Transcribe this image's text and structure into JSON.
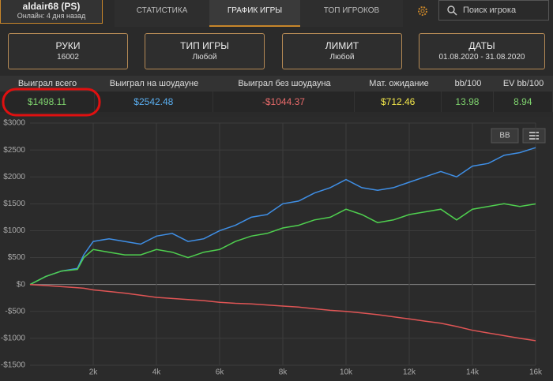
{
  "header": {
    "player": "aldair68 (PS)",
    "status": "Онлайн: 4 дня назад",
    "tabs": [
      "СТАТИСТИКА",
      "ГРАФИК ИГРЫ",
      "ТОП ИГРОКОВ"
    ],
    "search": "Поиск игрока"
  },
  "filters": [
    {
      "label": "РУКИ",
      "value": "16002"
    },
    {
      "label": "ТИП ИГРЫ",
      "value": "Любой"
    },
    {
      "label": "ЛИМИТ",
      "value": "Любой"
    },
    {
      "label": "ДАТЫ",
      "value": "01.08.2020 - 31.08.2020"
    }
  ],
  "stats": {
    "headers": [
      "Выиграл всего",
      "Выиграл на шоудауне",
      "Выиграл без шоудауна",
      "Мат. ожидание",
      "bb/100",
      "EV bb/100"
    ],
    "values": [
      "$1498.11",
      "$2542.48",
      "-$1044.37",
      "$712.46",
      "13.98",
      "8.94"
    ]
  },
  "chart_buttons": [
    "BB"
  ],
  "chart_data": {
    "type": "line",
    "x": [
      0,
      500,
      1000,
      1500,
      1700,
      2000,
      2500,
      3000,
      3500,
      4000,
      4500,
      5000,
      5500,
      6000,
      6500,
      7000,
      7500,
      8000,
      8500,
      9000,
      9500,
      10000,
      10500,
      11000,
      11500,
      12000,
      12500,
      13000,
      13500,
      14000,
      14500,
      15000,
      15500,
      16000
    ],
    "series": [
      {
        "color": "#3f8fe6",
        "values": [
          0,
          150,
          250,
          300,
          550,
          800,
          850,
          800,
          750,
          900,
          950,
          800,
          850,
          1000,
          1100,
          1250,
          1300,
          1500,
          1550,
          1700,
          1800,
          1950,
          1800,
          1750,
          1800,
          1900,
          2000,
          2100,
          2000,
          2200,
          2250,
          2400,
          2450,
          2542.48
        ]
      },
      {
        "color": "#4fd04f",
        "values": [
          0,
          150,
          250,
          280,
          500,
          650,
          600,
          550,
          550,
          650,
          600,
          500,
          600,
          650,
          800,
          900,
          950,
          1050,
          1100,
          1200,
          1250,
          1400,
          1300,
          1150,
          1200,
          1300,
          1350,
          1400,
          1200,
          1400,
          1450,
          1500,
          1450,
          1498.11
        ]
      },
      {
        "color": "#e05555",
        "values": [
          0,
          -20,
          -40,
          -60,
          -70,
          -100,
          -130,
          -160,
          -200,
          -240,
          -260,
          -280,
          -300,
          -330,
          -350,
          -360,
          -380,
          -400,
          -420,
          -450,
          -480,
          -500,
          -530,
          -560,
          -600,
          -640,
          -680,
          -720,
          -780,
          -850,
          -900,
          -950,
          -1000,
          -1044.37
        ]
      }
    ],
    "xlim": [
      0,
      16000
    ],
    "xticks": [
      {
        "value": 2000,
        "label": "2k"
      },
      {
        "value": 4000,
        "label": "4k"
      },
      {
        "value": 6000,
        "label": "6k"
      },
      {
        "value": 8000,
        "label": "8k"
      },
      {
        "value": 10000,
        "label": "10k"
      },
      {
        "value": 12000,
        "label": "12k"
      },
      {
        "value": 14000,
        "label": "14k"
      },
      {
        "value": 16000,
        "label": "16k"
      }
    ],
    "ylim": [
      -1500,
      3000
    ],
    "yticks": [
      {
        "value": -1500,
        "label": "-$1500"
      },
      {
        "value": -1000,
        "label": "-$1000"
      },
      {
        "value": -500,
        "label": "-$500"
      },
      {
        "value": 0,
        "label": "$0"
      },
      {
        "value": 500,
        "label": "$500"
      },
      {
        "value": 1000,
        "label": "$1000"
      },
      {
        "value": 1500,
        "label": "$1500"
      },
      {
        "value": 2000,
        "label": "$2000"
      },
      {
        "value": 2500,
        "label": "$2500"
      },
      {
        "value": 3000,
        "label": "$3000"
      }
    ],
    "grid": true
  }
}
